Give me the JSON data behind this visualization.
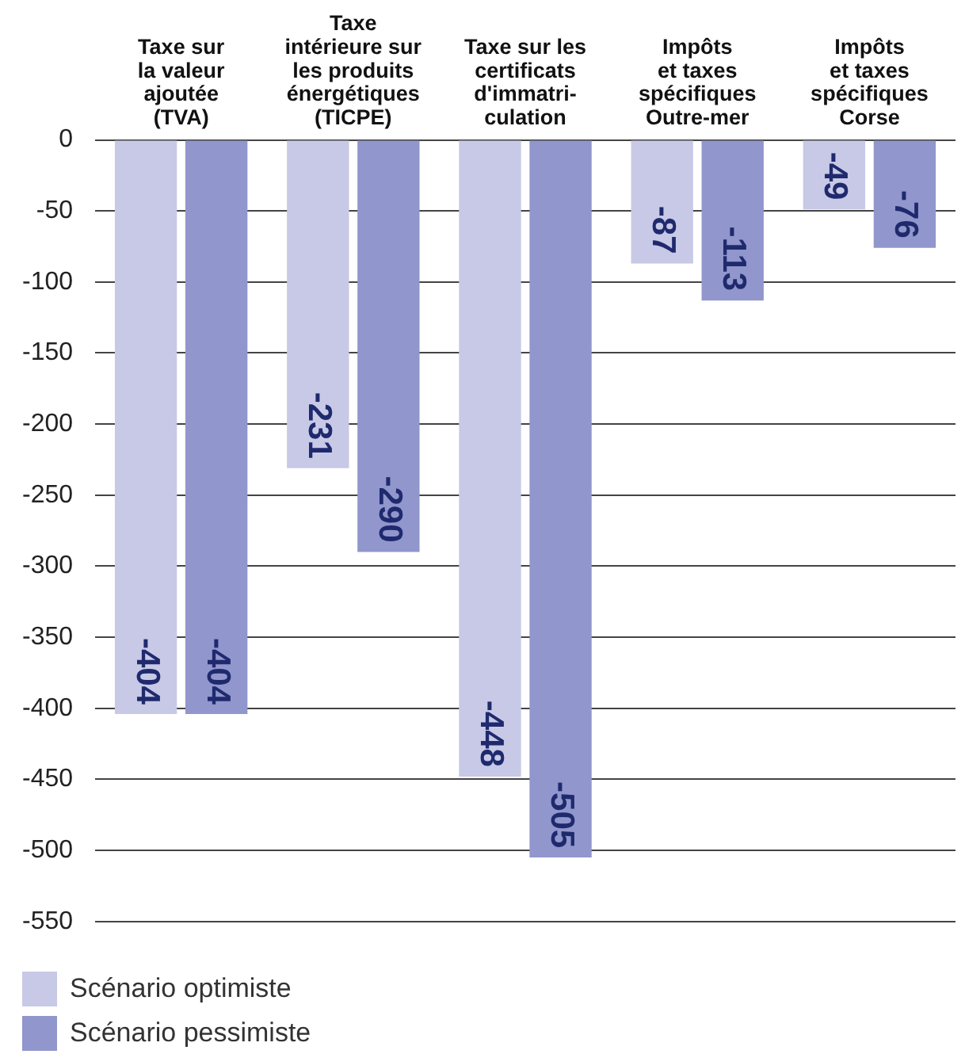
{
  "chart_data": {
    "type": "bar",
    "categories": [
      "Taxe sur\nla valeur\najoutée\n(TVA)",
      "Taxe\nintérieure sur\nles produits\nénergétiques\n(TICPE)",
      "Taxe sur les\ncertificats\nd'immatri-\nculation",
      "Impôts\net taxes\nspécifiques\nOutre-mer",
      "Impôts\net taxes\nspécifiques\nCorse"
    ],
    "series": [
      {
        "name": "Scénario optimiste",
        "color": "#c8c9e6",
        "values": [
          -404,
          -231,
          -448,
          -87,
          -49
        ]
      },
      {
        "name": "Scénario pessimiste",
        "color": "#9196cc",
        "values": [
          -404,
          -290,
          -505,
          -113,
          -76
        ]
      }
    ],
    "ylim": [
      -550,
      0
    ],
    "yticks": [
      0,
      -50,
      -100,
      -150,
      -200,
      -250,
      -300,
      -350,
      -400,
      -450,
      -500,
      -550
    ],
    "grid": "y",
    "legend": "bottom left",
    "data_labels": true
  }
}
